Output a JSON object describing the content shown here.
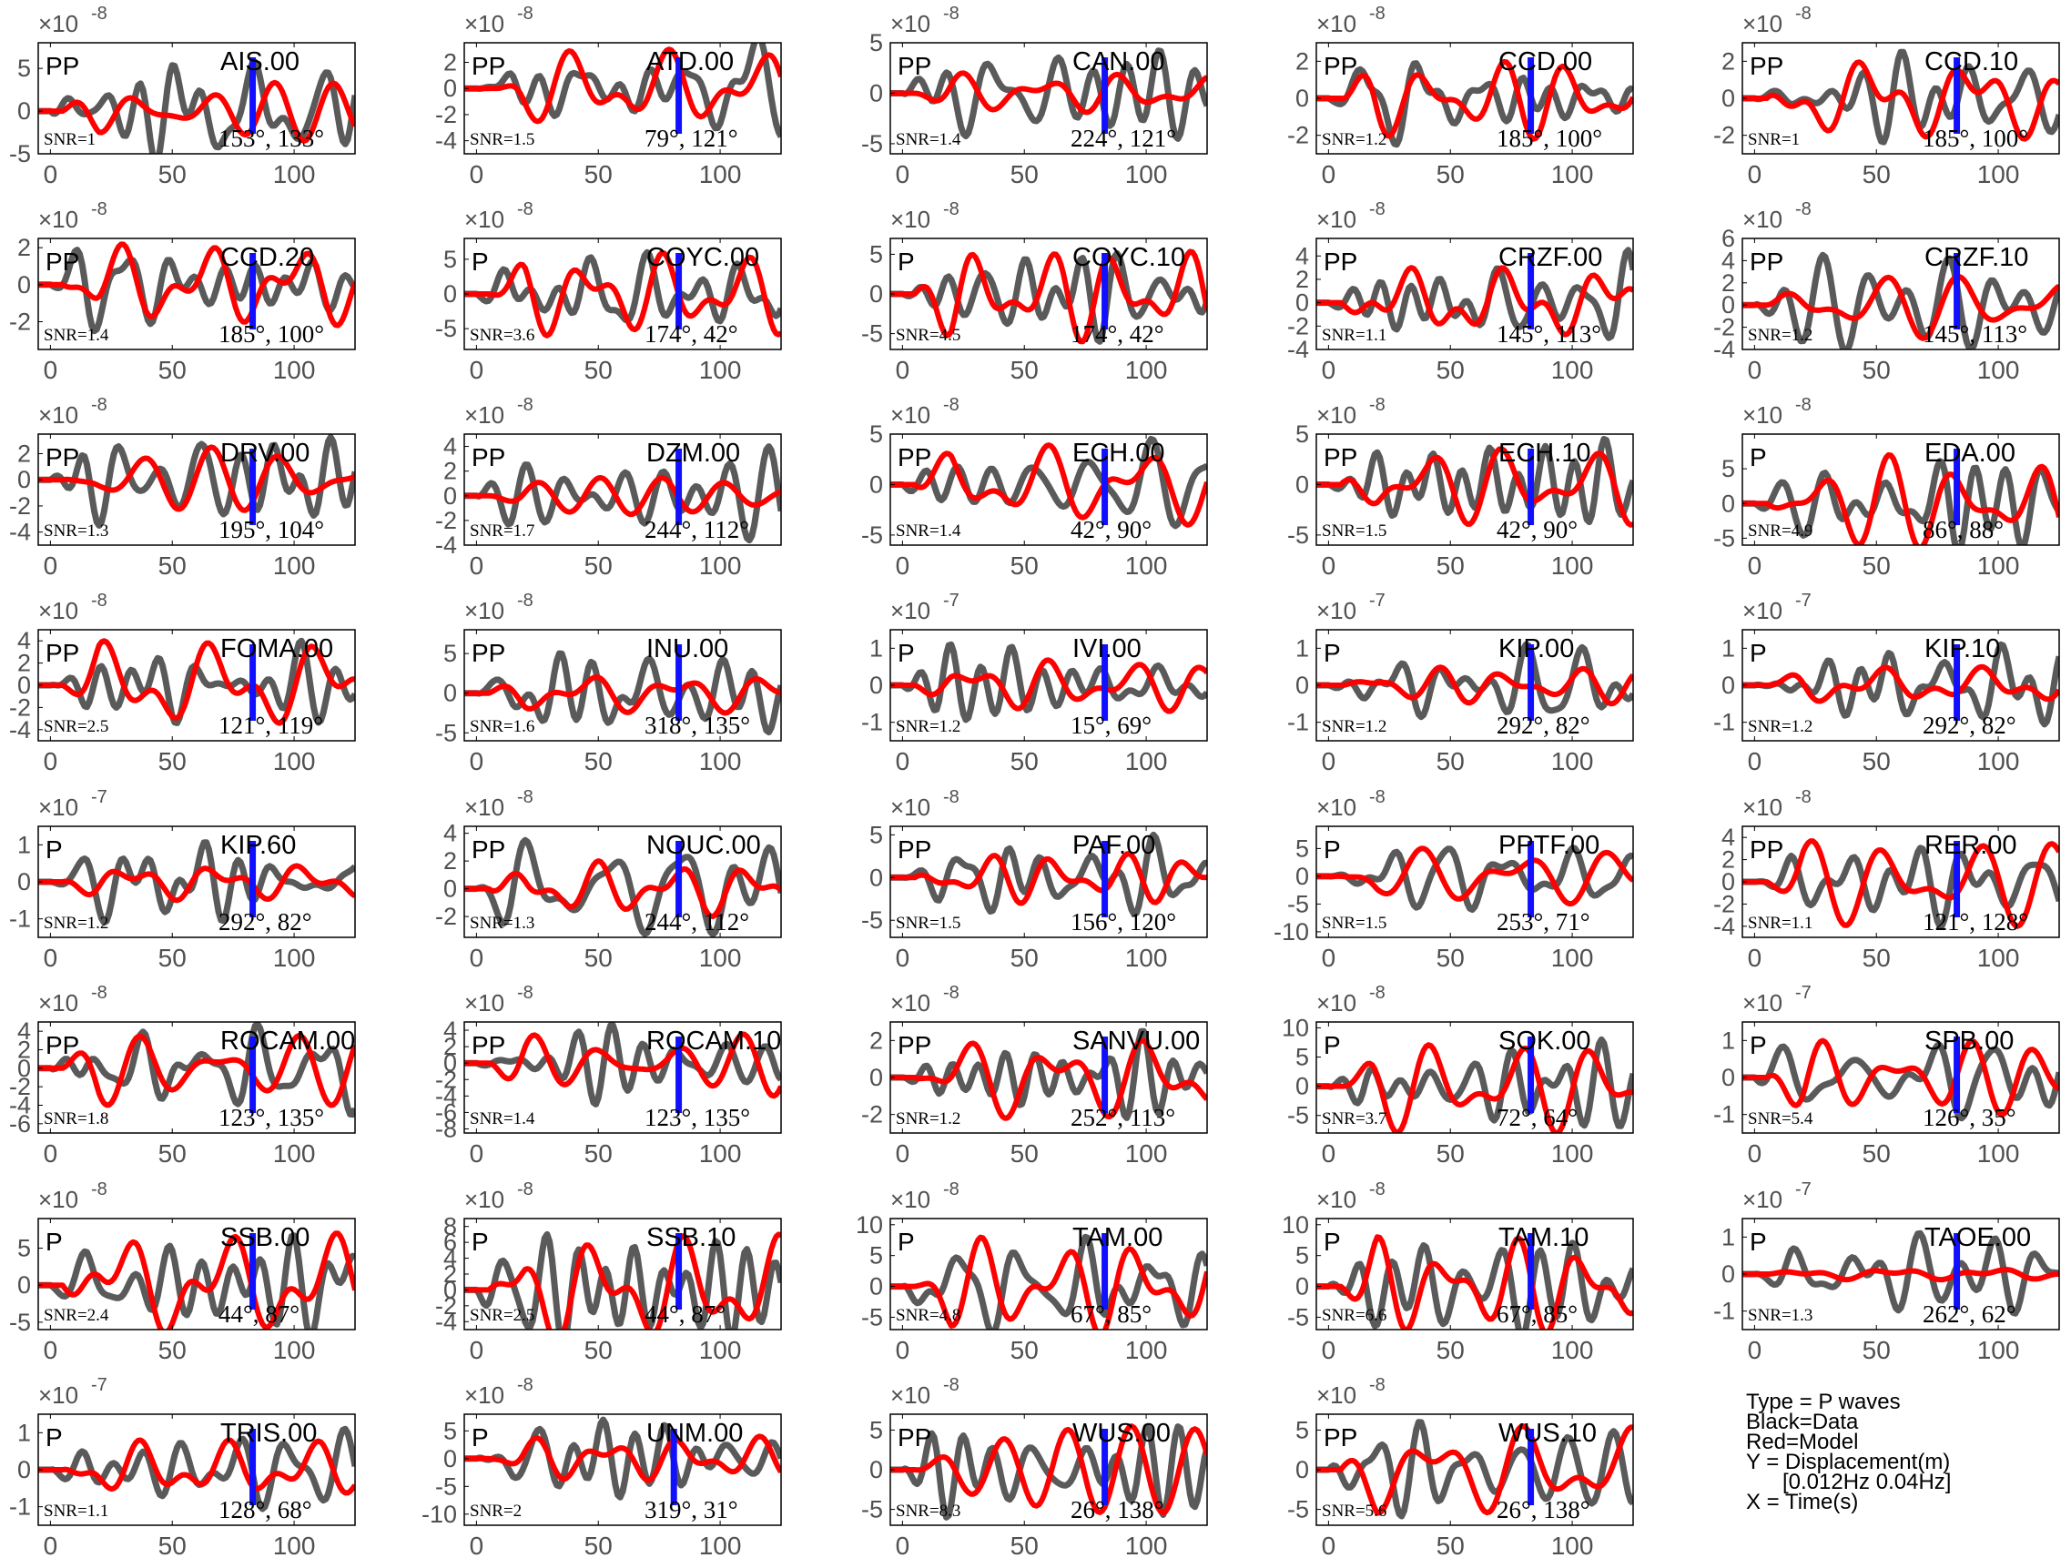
{
  "figure": {
    "legend": {
      "type": "Type = P waves",
      "black": "Black=Data",
      "red": "Red=Model",
      "y": "Y = Displacement(m)",
      "band": "[0.012Hz 0.04Hz]",
      "x": "X = Time(s)"
    },
    "colors": {
      "data": "#5a5a5a",
      "model": "#ff0000",
      "marker": "#1010ff",
      "axes": "#000000",
      "ticks": "#505050"
    },
    "xticks": [
      0,
      50,
      100
    ],
    "xlim": [
      -5,
      125
    ]
  },
  "chart_data": [
    {
      "type": "line",
      "station": "AIS.00",
      "phase": "PP",
      "snr": "SNR=1",
      "angles": "153°, 133°",
      "exp": "-8",
      "yticks": [
        "5",
        "0",
        "-5"
      ],
      "ylim": [
        -5,
        8
      ],
      "marker_t": 83,
      "amp_data": 6,
      "amp_model": 3.5
    },
    {
      "type": "line",
      "station": "ATD.00",
      "phase": "PP",
      "snr": "SNR=1.5",
      "angles": "79°, 121°",
      "exp": "-8",
      "yticks": [
        "2",
        "0",
        "-2",
        "-4"
      ],
      "ylim": [
        -5,
        3.5
      ],
      "marker_t": 83,
      "amp_data": 4,
      "amp_model": 3
    },
    {
      "type": "line",
      "station": "CAN.00",
      "phase": "PP",
      "snr": "SNR=1.4",
      "angles": "224°, 121°",
      "exp": "-8",
      "yticks": [
        "5",
        "0",
        "-5"
      ],
      "ylim": [
        -6,
        5
      ],
      "marker_t": 83,
      "amp_data": 4.5,
      "amp_model": 2
    },
    {
      "type": "line",
      "station": "CCD.00",
      "phase": "PP",
      "snr": "SNR=1.2",
      "angles": "185°, 100°",
      "exp": "-8",
      "yticks": [
        "2",
        "0",
        "-2"
      ],
      "ylim": [
        -3,
        3
      ],
      "marker_t": 83,
      "amp_data": 2.5,
      "amp_model": 2.2
    },
    {
      "type": "line",
      "station": "CCD.10",
      "phase": "PP",
      "snr": "SNR=1",
      "angles": "185°, 100°",
      "exp": "-8",
      "yticks": [
        "2",
        "0",
        "-2"
      ],
      "ylim": [
        -3,
        3
      ],
      "marker_t": 83,
      "amp_data": 2.5,
      "amp_model": 2.2
    },
    {
      "type": "line",
      "station": "CCD.20",
      "phase": "PP",
      "snr": "SNR=1.4",
      "angles": "185°, 100°",
      "exp": "-8",
      "yticks": [
        "2",
        "0",
        "-2"
      ],
      "ylim": [
        -3.5,
        2.5
      ],
      "marker_t": 83,
      "amp_data": 2.5,
      "amp_model": 2.2
    },
    {
      "type": "line",
      "station": "COYC.00",
      "phase": "P",
      "snr": "SNR=3.6",
      "angles": "174°, 42°",
      "exp": "-8",
      "yticks": [
        "5",
        "0",
        "-5"
      ],
      "ylim": [
        -8,
        8
      ],
      "marker_t": 83,
      "amp_data": 6,
      "amp_model": 6
    },
    {
      "type": "line",
      "station": "COYC.10",
      "phase": "P",
      "snr": "SNR=4.5",
      "angles": "174°, 42°",
      "exp": "-8",
      "yticks": [
        "5",
        "0",
        "-5"
      ],
      "ylim": [
        -7,
        7
      ],
      "marker_t": 83,
      "amp_data": 6,
      "amp_model": 6
    },
    {
      "type": "line",
      "station": "CRZF.00",
      "phase": "PP",
      "snr": "SNR=1.1",
      "angles": "145°, 113°",
      "exp": "-8",
      "yticks": [
        "4",
        "2",
        "0",
        "-2",
        "-4"
      ],
      "ylim": [
        -4,
        5.5
      ],
      "marker_t": 83,
      "amp_data": 4.5,
      "amp_model": 3
    },
    {
      "type": "line",
      "station": "CRZF.10",
      "phase": "PP",
      "snr": "SNR=1.2",
      "angles": "145°, 113°",
      "exp": "-8",
      "yticks": [
        "6",
        "4",
        "2",
        "0",
        "-2",
        "-4"
      ],
      "ylim": [
        -4,
        6
      ],
      "marker_t": 83,
      "amp_data": 4.5,
      "amp_model": 3
    },
    {
      "type": "line",
      "station": "DRV.00",
      "phase": "PP",
      "snr": "SNR=1.3",
      "angles": "195°, 104°",
      "exp": "-8",
      "yticks": [
        "2",
        "0",
        "-2",
        "-4"
      ],
      "ylim": [
        -5,
        3.5
      ],
      "marker_t": 83,
      "amp_data": 3.5,
      "amp_model": 2.5
    },
    {
      "type": "line",
      "station": "DZM.00",
      "phase": "PP",
      "snr": "SNR=1.7",
      "angles": "244°, 112°",
      "exp": "-8",
      "yticks": [
        "4",
        "2",
        "0",
        "-2",
        "-4"
      ],
      "ylim": [
        -4,
        5
      ],
      "marker_t": 83,
      "amp_data": 4,
      "amp_model": 1.5
    },
    {
      "type": "line",
      "station": "ECH.00",
      "phase": "PP",
      "snr": "SNR=1.4",
      "angles": "42°, 90°",
      "exp": "-8",
      "yticks": [
        "5",
        "0",
        "-5"
      ],
      "ylim": [
        -6,
        5
      ],
      "marker_t": 83,
      "amp_data": 4.5,
      "amp_model": 4
    },
    {
      "type": "line",
      "station": "ECH.10",
      "phase": "PP",
      "snr": "SNR=1.5",
      "angles": "42°, 90°",
      "exp": "-8",
      "yticks": [
        "5",
        "0",
        "-5"
      ],
      "ylim": [
        -6,
        5
      ],
      "marker_t": 83,
      "amp_data": 4.5,
      "amp_model": 4
    },
    {
      "type": "line",
      "station": "EDA.00",
      "phase": "P",
      "snr": "SNR=4.9",
      "angles": "86°, 88°",
      "exp": "-8",
      "yticks": [
        "5",
        "0",
        "-5"
      ],
      "ylim": [
        -6,
        10
      ],
      "marker_t": 83,
      "amp_data": 7,
      "amp_model": 7
    },
    {
      "type": "line",
      "station": "FOMA.00",
      "phase": "PP",
      "snr": "SNR=2.5",
      "angles": "121°, 119°",
      "exp": "-8",
      "yticks": [
        "4",
        "2",
        "0",
        "-2",
        "-4"
      ],
      "ylim": [
        -5,
        5
      ],
      "marker_t": 83,
      "amp_data": 4,
      "amp_model": 4
    },
    {
      "type": "line",
      "station": "INU.00",
      "phase": "PP",
      "snr": "SNR=1.6",
      "angles": "318°, 135°",
      "exp": "-8",
      "yticks": [
        "5",
        "0",
        "-5"
      ],
      "ylim": [
        -6,
        8
      ],
      "marker_t": 83,
      "amp_data": 5,
      "amp_model": 2.5
    },
    {
      "type": "line",
      "station": "IVI.00",
      "phase": "P",
      "snr": "SNR=1.2",
      "angles": "15°, 69°",
      "exp": "-7",
      "yticks": [
        "1",
        "0",
        "-1"
      ],
      "ylim": [
        -1.5,
        1.5
      ],
      "marker_t": 83,
      "amp_data": 1.1,
      "amp_model": 0.7
    },
    {
      "type": "line",
      "station": "KIP.00",
      "phase": "P",
      "snr": "SNR=1.2",
      "angles": "292°, 82°",
      "exp": "-7",
      "yticks": [
        "1",
        "0",
        "-1"
      ],
      "ylim": [
        -1.5,
        1.5
      ],
      "marker_t": 83,
      "amp_data": 1.1,
      "amp_model": 0.5
    },
    {
      "type": "line",
      "station": "KIP.10",
      "phase": "P",
      "snr": "SNR=1.2",
      "angles": "292°, 82°",
      "exp": "-7",
      "yticks": [
        "1",
        "0",
        "-1"
      ],
      "ylim": [
        -1.5,
        1.5
      ],
      "marker_t": 83,
      "amp_data": 1.1,
      "amp_model": 0.5
    },
    {
      "type": "line",
      "station": "KIP.60",
      "phase": "P",
      "snr": "SNR=1.2",
      "angles": "292°, 82°",
      "exp": "-7",
      "yticks": [
        "1",
        "0",
        "-1"
      ],
      "ylim": [
        -1.5,
        1.5
      ],
      "marker_t": 83,
      "amp_data": 1.1,
      "amp_model": 0.5
    },
    {
      "type": "line",
      "station": "NOUC.00",
      "phase": "PP",
      "snr": "SNR=1.3",
      "angles": "244°, 112°",
      "exp": "-8",
      "yticks": [
        "4",
        "2",
        "0",
        "-2"
      ],
      "ylim": [
        -3.5,
        4.5
      ],
      "marker_t": 83,
      "amp_data": 3.5,
      "amp_model": 2
    },
    {
      "type": "line",
      "station": "PAF.00",
      "phase": "PP",
      "snr": "SNR=1.5",
      "angles": "156°, 120°",
      "exp": "-8",
      "yticks": [
        "5",
        "0",
        "-5"
      ],
      "ylim": [
        -7,
        6
      ],
      "marker_t": 83,
      "amp_data": 5,
      "amp_model": 3
    },
    {
      "type": "line",
      "station": "PPTF.00",
      "phase": "P",
      "snr": "SNR=1.5",
      "angles": "253°, 71°",
      "exp": "-8",
      "yticks": [
        "5",
        "0",
        "-5",
        "-10"
      ],
      "ylim": [
        -11,
        9
      ],
      "marker_t": 83,
      "amp_data": 6,
      "amp_model": 5
    },
    {
      "type": "line",
      "station": "RER.00",
      "phase": "PP",
      "snr": "SNR=1.1",
      "angles": "121°, 128°",
      "exp": "-8",
      "yticks": [
        "4",
        "2",
        "0",
        "-2",
        "-4"
      ],
      "ylim": [
        -5,
        5
      ],
      "marker_t": 83,
      "amp_data": 4,
      "amp_model": 4
    },
    {
      "type": "line",
      "station": "ROCAM.00",
      "phase": "PP",
      "snr": "SNR=1.8",
      "angles": "123°, 135°",
      "exp": "-8",
      "yticks": [
        "4",
        "2",
        "0",
        "-2",
        "-4",
        "-6"
      ],
      "ylim": [
        -7,
        5
      ],
      "marker_t": 83,
      "amp_data": 5,
      "amp_model": 4
    },
    {
      "type": "line",
      "station": "ROCAM.10",
      "phase": "PP",
      "snr": "SNR=1.4",
      "angles": "123°, 135°",
      "exp": "-8",
      "yticks": [
        "4",
        "2",
        "0",
        "-2",
        "-4",
        "-6",
        "-8"
      ],
      "ylim": [
        -8.5,
        5
      ],
      "marker_t": 83,
      "amp_data": 5,
      "amp_model": 4
    },
    {
      "type": "line",
      "station": "SANVU.00",
      "phase": "PP",
      "snr": "SNR=1.2",
      "angles": "252°, 113°",
      "exp": "-8",
      "yticks": [
        "2",
        "0",
        "-2"
      ],
      "ylim": [
        -3,
        3
      ],
      "marker_t": 83,
      "amp_data": 2.5,
      "amp_model": 2.2
    },
    {
      "type": "line",
      "station": "SOK.00",
      "phase": "P",
      "snr": "SNR=3.7",
      "angles": "72°, 64°",
      "exp": "-8",
      "yticks": [
        "10",
        "5",
        "0",
        "-5"
      ],
      "ylim": [
        -8,
        11
      ],
      "marker_t": 83,
      "amp_data": 8,
      "amp_model": 8
    },
    {
      "type": "line",
      "station": "SPB.00",
      "phase": "P",
      "snr": "SNR=5.4",
      "angles": "126°, 35°",
      "exp": "-7",
      "yticks": [
        "1",
        "0",
        "-1"
      ],
      "ylim": [
        -1.5,
        1.5
      ],
      "marker_t": 83,
      "amp_data": 1.1,
      "amp_model": 1
    },
    {
      "type": "line",
      "station": "SSB.00",
      "phase": "P",
      "snr": "SNR=2.4",
      "angles": "44°, 87°",
      "exp": "-8",
      "yticks": [
        "5",
        "0",
        "-5"
      ],
      "ylim": [
        -6,
        9
      ],
      "marker_t": 83,
      "amp_data": 7,
      "amp_model": 7
    },
    {
      "type": "line",
      "station": "SSB.10",
      "phase": "P",
      "snr": "SNR=2.5",
      "angles": "44°, 87°",
      "exp": "-8",
      "yticks": [
        "8",
        "6",
        "4",
        "2",
        "0",
        "-2",
        "-4"
      ],
      "ylim": [
        -5,
        9
      ],
      "marker_t": 83,
      "amp_data": 7,
      "amp_model": 7
    },
    {
      "type": "line",
      "station": "TAM.00",
      "phase": "P",
      "snr": "SNR=4.8",
      "angles": "67°, 85°",
      "exp": "-8",
      "yticks": [
        "10",
        "5",
        "0",
        "-5"
      ],
      "ylim": [
        -7,
        11
      ],
      "marker_t": 83,
      "amp_data": 8,
      "amp_model": 8
    },
    {
      "type": "line",
      "station": "TAM.10",
      "phase": "P",
      "snr": "SNR=6.6",
      "angles": "67°, 85°",
      "exp": "-8",
      "yticks": [
        "10",
        "5",
        "0",
        "-5"
      ],
      "ylim": [
        -7,
        11
      ],
      "marker_t": 83,
      "amp_data": 8,
      "amp_model": 8
    },
    {
      "type": "line",
      "station": "TAOE.00",
      "phase": "P",
      "snr": "SNR=1.3",
      "angles": "262°, 62°",
      "exp": "-7",
      "yticks": [
        "1",
        "0",
        "-1"
      ],
      "ylim": [
        -1.5,
        1.5
      ],
      "marker_t": 83,
      "amp_data": 1.1,
      "amp_model": 0.15
    },
    {
      "type": "line",
      "station": "TRIS.00",
      "phase": "P",
      "snr": "SNR=1.1",
      "angles": "128°, 68°",
      "exp": "-7",
      "yticks": [
        "1",
        "0",
        "-1"
      ],
      "ylim": [
        -1.5,
        1.5
      ],
      "marker_t": 83,
      "amp_data": 1.1,
      "amp_model": 0.8
    },
    {
      "type": "line",
      "station": "UNM.00",
      "phase": "P",
      "snr": "SNR=2",
      "angles": "319°, 31°",
      "exp": "-8",
      "yticks": [
        "5",
        "0",
        "-5",
        "-10"
      ],
      "ylim": [
        -12,
        8
      ],
      "marker_t": 81,
      "amp_data": 7,
      "amp_model": 4
    },
    {
      "type": "line",
      "station": "WUS.00",
      "phase": "PP",
      "snr": "SNR=8.3",
      "angles": "26°, 138°",
      "exp": "-8",
      "yticks": [
        "5",
        "0",
        "-5"
      ],
      "ylim": [
        -7,
        7
      ],
      "marker_t": 83,
      "amp_data": 6,
      "amp_model": 5.5
    },
    {
      "type": "line",
      "station": "WUS.10",
      "phase": "PP",
      "snr": "SNR=5.6",
      "angles": "26°, 138°",
      "exp": "-8",
      "yticks": [
        "5",
        "0",
        "-5"
      ],
      "ylim": [
        -7,
        7
      ],
      "marker_t": 83,
      "amp_data": 6,
      "amp_model": 5.5
    }
  ]
}
